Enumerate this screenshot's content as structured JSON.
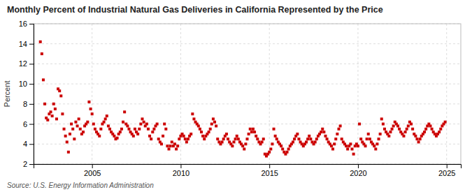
{
  "chart_data": {
    "type": "scatter",
    "title": "Monthly Percent of Industrial Natural Gas Deliveries in California Represented by the Price",
    "ylabel": "Percent",
    "source": "Source: U.S. Energy Information Administration",
    "color": "#cc0000",
    "marker": "square",
    "grid": true,
    "xlim": [
      2001.7,
      2025.8
    ],
    "xticks": [
      2005,
      2010,
      2015,
      2020,
      2025
    ],
    "ylim": [
      2,
      16
    ],
    "yticks": [
      2,
      4,
      6,
      8,
      10,
      12,
      14,
      16
    ],
    "x": [
      2002.083,
      2002.167,
      2002.25,
      2002.333,
      2002.417,
      2002.5,
      2002.583,
      2002.667,
      2002.75,
      2002.833,
      2002.917,
      2003.0,
      2003.083,
      2003.167,
      2003.25,
      2003.333,
      2003.417,
      2003.5,
      2003.583,
      2003.667,
      2003.75,
      2003.833,
      2003.917,
      2004.0,
      2004.083,
      2004.167,
      2004.25,
      2004.333,
      2004.417,
      2004.5,
      2004.583,
      2004.667,
      2004.75,
      2004.833,
      2004.917,
      2005.0,
      2005.083,
      2005.167,
      2005.25,
      2005.333,
      2005.417,
      2005.5,
      2005.583,
      2005.667,
      2005.75,
      2005.833,
      2005.917,
      2006.0,
      2006.083,
      2006.167,
      2006.25,
      2006.333,
      2006.417,
      2006.5,
      2006.583,
      2006.667,
      2006.75,
      2006.833,
      2006.917,
      2007.0,
      2007.083,
      2007.167,
      2007.25,
      2007.333,
      2007.417,
      2007.5,
      2007.583,
      2007.667,
      2007.75,
      2007.833,
      2007.917,
      2008.0,
      2008.083,
      2008.167,
      2008.25,
      2008.333,
      2008.417,
      2008.5,
      2008.583,
      2008.667,
      2008.75,
      2008.833,
      2008.917,
      2009.0,
      2009.083,
      2009.167,
      2009.25,
      2009.333,
      2009.417,
      2009.5,
      2009.583,
      2009.667,
      2009.75,
      2009.833,
      2009.917,
      2010.0,
      2010.083,
      2010.167,
      2010.25,
      2010.333,
      2010.417,
      2010.5,
      2010.583,
      2010.667,
      2010.75,
      2010.833,
      2010.917,
      2011.0,
      2011.083,
      2011.167,
      2011.25,
      2011.333,
      2011.417,
      2011.5,
      2011.583,
      2011.667,
      2011.75,
      2011.833,
      2011.917,
      2012.0,
      2012.083,
      2012.167,
      2012.25,
      2012.333,
      2012.417,
      2012.5,
      2012.583,
      2012.667,
      2012.75,
      2012.833,
      2012.917,
      2013.0,
      2013.083,
      2013.167,
      2013.25,
      2013.333,
      2013.417,
      2013.5,
      2013.583,
      2013.667,
      2013.75,
      2013.833,
      2013.917,
      2014.0,
      2014.083,
      2014.167,
      2014.25,
      2014.333,
      2014.417,
      2014.5,
      2014.583,
      2014.667,
      2014.75,
      2014.833,
      2014.917,
      2015.0,
      2015.083,
      2015.167,
      2015.25,
      2015.333,
      2015.417,
      2015.5,
      2015.583,
      2015.667,
      2015.75,
      2015.833,
      2015.917,
      2016.0,
      2016.083,
      2016.167,
      2016.25,
      2016.333,
      2016.417,
      2016.5,
      2016.583,
      2016.667,
      2016.75,
      2016.833,
      2016.917,
      2017.0,
      2017.083,
      2017.167,
      2017.25,
      2017.333,
      2017.417,
      2017.5,
      2017.583,
      2017.667,
      2017.75,
      2017.833,
      2017.917,
      2018.0,
      2018.083,
      2018.167,
      2018.25,
      2018.333,
      2018.417,
      2018.5,
      2018.583,
      2018.667,
      2018.75,
      2018.833,
      2018.917,
      2019.0,
      2019.083,
      2019.167,
      2019.25,
      2019.333,
      2019.417,
      2019.5,
      2019.583,
      2019.667,
      2019.75,
      2019.833,
      2019.917,
      2020.0,
      2020.083,
      2020.167,
      2020.25,
      2020.333,
      2020.417,
      2020.5,
      2020.583,
      2020.667,
      2020.75,
      2020.833,
      2020.917,
      2021.0,
      2021.083,
      2021.167,
      2021.25,
      2021.333,
      2021.417,
      2021.5,
      2021.583,
      2021.667,
      2021.75,
      2021.833,
      2021.917,
      2022.0,
      2022.083,
      2022.167,
      2022.25,
      2022.333,
      2022.417,
      2022.5,
      2022.583,
      2022.667,
      2022.75,
      2022.833,
      2022.917,
      2023.0,
      2023.083,
      2023.167,
      2023.25,
      2023.333,
      2023.417,
      2023.5,
      2023.583,
      2023.667,
      2023.75,
      2023.833,
      2023.917,
      2024.0,
      2024.083,
      2024.167,
      2024.25,
      2024.333,
      2024.417,
      2024.5,
      2024.583,
      2024.667,
      2024.75,
      2024.833,
      2024.917
    ],
    "values": [
      14.2,
      13.0,
      10.4,
      8.0,
      6.6,
      6.4,
      7.0,
      7.2,
      6.8,
      8.0,
      7.5,
      6.5,
      9.5,
      9.3,
      8.8,
      7.0,
      5.5,
      4.8,
      4.2,
      3.2,
      5.0,
      6.0,
      5.5,
      4.5,
      6.2,
      5.8,
      6.5,
      5.5,
      5.0,
      5.2,
      5.8,
      6.0,
      6.2,
      8.2,
      7.5,
      7.0,
      6.0,
      5.5,
      5.2,
      5.0,
      4.8,
      5.5,
      6.0,
      6.2,
      6.5,
      6.8,
      5.8,
      5.5,
      5.2,
      5.0,
      4.8,
      4.5,
      4.6,
      5.0,
      5.2,
      5.5,
      6.2,
      7.2,
      6.0,
      5.8,
      5.5,
      5.2,
      5.0,
      4.8,
      5.5,
      5.2,
      5.0,
      5.5,
      6.0,
      6.5,
      6.2,
      5.8,
      6.0,
      5.5,
      4.8,
      4.5,
      5.2,
      5.5,
      5.8,
      6.0,
      4.5,
      4.2,
      4.0,
      4.8,
      6.0,
      5.5,
      3.8,
      3.5,
      3.8,
      4.2,
      3.8,
      4.0,
      3.5,
      3.8,
      4.5,
      4.8,
      5.0,
      4.8,
      4.5,
      4.2,
      4.5,
      4.8,
      5.0,
      7.0,
      6.5,
      6.2,
      6.0,
      5.8,
      5.5,
      5.2,
      4.8,
      4.5,
      4.8,
      5.0,
      5.2,
      5.5,
      6.0,
      6.5,
      6.2,
      5.8,
      4.5,
      4.2,
      4.0,
      4.2,
      4.5,
      4.8,
      5.0,
      4.5,
      4.2,
      4.0,
      3.8,
      4.2,
      4.5,
      4.8,
      4.5,
      4.2,
      4.0,
      3.8,
      3.5,
      4.0,
      4.5,
      5.0,
      5.5,
      5.2,
      5.5,
      5.2,
      4.8,
      4.5,
      4.2,
      4.0,
      4.2,
      4.5,
      3.0,
      2.8,
      3.0,
      3.2,
      3.5,
      4.0,
      5.5,
      4.8,
      4.5,
      4.2,
      4.0,
      3.8,
      3.5,
      3.2,
      3.0,
      3.2,
      3.5,
      3.8,
      4.0,
      4.2,
      4.5,
      4.8,
      5.0,
      4.5,
      4.2,
      4.0,
      3.8,
      4.0,
      4.2,
      4.5,
      4.8,
      4.5,
      4.2,
      4.0,
      4.2,
      4.5,
      4.8,
      5.0,
      5.2,
      5.5,
      5.2,
      4.8,
      4.5,
      4.2,
      4.0,
      3.8,
      3.5,
      4.0,
      4.5,
      5.0,
      5.5,
      5.8,
      4.5,
      4.2,
      4.0,
      3.8,
      3.5,
      3.8,
      4.0,
      3.5,
      3.0,
      3.8,
      4.0,
      3.8,
      6.0,
      4.5,
      4.2,
      4.0,
      3.8,
      4.5,
      5.0,
      4.5,
      4.2,
      4.0,
      3.8,
      3.5,
      4.0,
      4.5,
      5.0,
      6.5,
      6.0,
      5.5,
      5.2,
      5.0,
      4.8,
      5.2,
      5.5,
      5.8,
      6.2,
      6.0,
      5.8,
      5.5,
      5.2,
      5.0,
      4.8,
      5.2,
      5.5,
      5.8,
      6.2,
      6.0,
      5.5,
      5.0,
      4.8,
      4.5,
      4.2,
      4.5,
      4.8,
      5.0,
      5.2,
      5.5,
      5.8,
      6.0,
      5.8,
      5.5,
      5.2,
      5.0,
      4.8,
      5.0,
      5.2,
      5.5,
      5.8,
      6.0,
      6.2
    ]
  }
}
